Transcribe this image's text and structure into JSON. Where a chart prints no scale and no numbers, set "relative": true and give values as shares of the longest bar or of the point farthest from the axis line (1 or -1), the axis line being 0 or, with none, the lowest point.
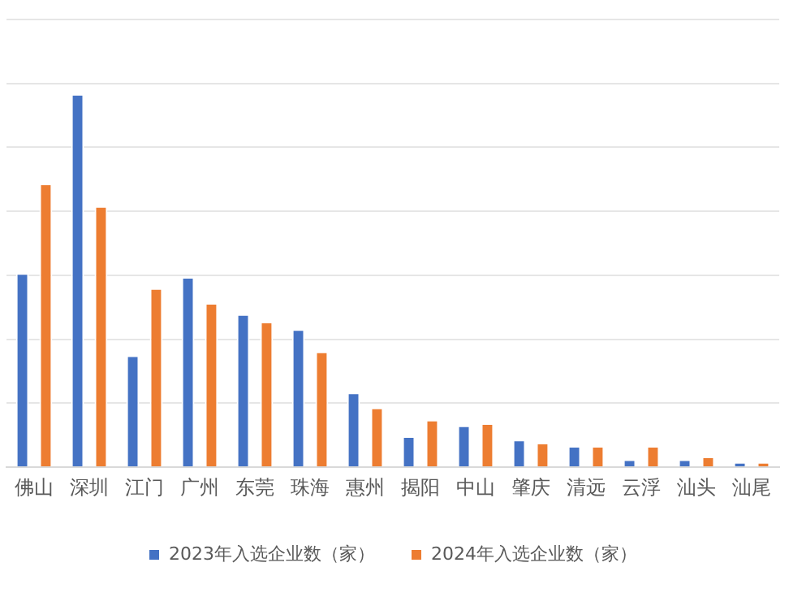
{
  "chart_data": {
    "type": "bar",
    "relative": true,
    "grid": "y",
    "legend": "bottom",
    "categories": [
      "佛山",
      "深圳",
      "江门",
      "广州",
      "东莞",
      "珠海",
      "惠州",
      "揭阳",
      "中山",
      "肇庆",
      "清远",
      "云浮",
      "汕头",
      "汕尾"
    ],
    "series": [
      {
        "name": "2023年入选企业数（家）",
        "color": "#4472c4",
        "values": [
          0.52,
          1,
          0.3,
          0.51,
          0.41,
          0.37,
          0.2,
          0.083,
          0.112,
          0.074,
          0.057,
          0.021,
          0.021,
          0.014
        ]
      },
      {
        "name": "2024年入选企业数（家）",
        "color": "#ed7d31",
        "values": [
          0.76,
          0.7,
          0.48,
          0.44,
          0.39,
          0.31,
          0.16,
          0.127,
          0.118,
          0.066,
          0.057,
          0.057,
          0.029,
          0.014
        ]
      }
    ]
  }
}
